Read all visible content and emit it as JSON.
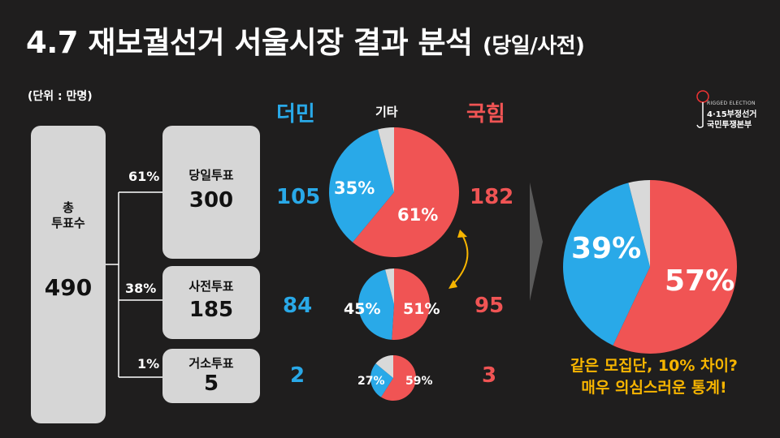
{
  "title": {
    "main": "4.7 재보궐선거 서울시장 결과 분석",
    "sub": "(당일/사전)"
  },
  "unit": "(단위 : 만명)",
  "total": {
    "label": [
      "총",
      "투표수"
    ],
    "value": "490"
  },
  "vote_types": [
    {
      "label": "당일투표",
      "value": "300",
      "share": "61%",
      "dem": "105",
      "ppp": "182",
      "dem_pct": "35%",
      "ppp_pct": "61%"
    },
    {
      "label": "사전투표",
      "value": "185",
      "share": "38%",
      "dem": "84",
      "ppp": "95",
      "dem_pct": "45%",
      "ppp_pct": "51%"
    },
    {
      "label": "거소투표",
      "value": "5",
      "share": "1%",
      "dem": "2",
      "ppp": "3",
      "dem_pct": "27%",
      "ppp_pct": "59%"
    }
  ],
  "headers": {
    "dem": "더민",
    "other": "기타",
    "ppp": "국힘"
  },
  "summary_pie": {
    "dem_pct": "39%",
    "ppp_pct": "57%"
  },
  "conclusion": [
    "같은 모집단, 10% 차이?",
    "매우 의심스러운 통계!"
  ],
  "logo": {
    "line1": "RIGGED ELECTION",
    "line2": "4·15부정선거",
    "line3": "국민투쟁본부"
  },
  "colors": {
    "dem": "#29a9e8",
    "ppp": "#f05454",
    "other": "#d9d9d9",
    "highlight": "#f7b500",
    "box": "#d6d6d6"
  },
  "pies": [
    {
      "dem": 0.35,
      "ppp": 0.61,
      "other": 0.04
    },
    {
      "dem": 0.45,
      "ppp": 0.51,
      "other": 0.04
    },
    {
      "dem": 0.27,
      "ppp": 0.59,
      "other": 0.14
    },
    {
      "dem": 0.39,
      "ppp": 0.57,
      "other": 0.04
    }
  ]
}
